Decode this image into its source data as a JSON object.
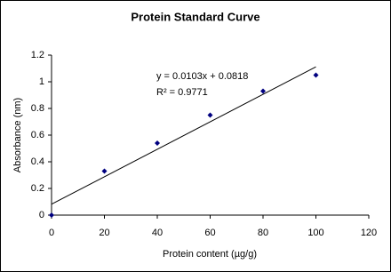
{
  "chart_data": {
    "type": "scatter",
    "title": "Protein Standard Curve",
    "x_label": "Protein content (µg/g)",
    "y_label": "Absorbance (nm)",
    "x": [
      0,
      20,
      40,
      60,
      80,
      100
    ],
    "series": [
      {
        "name": "Absorbance",
        "color": "#000080",
        "values": [
          0,
          0.33,
          0.54,
          0.75,
          0.93,
          1.05
        ]
      }
    ],
    "trendline": {
      "slope": 0.0103,
      "intercept": 0.0818,
      "x": [
        0,
        100
      ]
    },
    "annotations": [
      "y = 0.0103x + 0.0818",
      "R² = 0.9771"
    ],
    "xlim": [
      0,
      120
    ],
    "xticks": [
      0,
      20,
      40,
      60,
      80,
      100,
      120
    ],
    "ylim": [
      0,
      1.2
    ],
    "yticks": [
      0,
      0.2,
      0.4,
      0.6,
      0.8,
      1,
      1.2
    ],
    "grid": false,
    "legend": false
  }
}
